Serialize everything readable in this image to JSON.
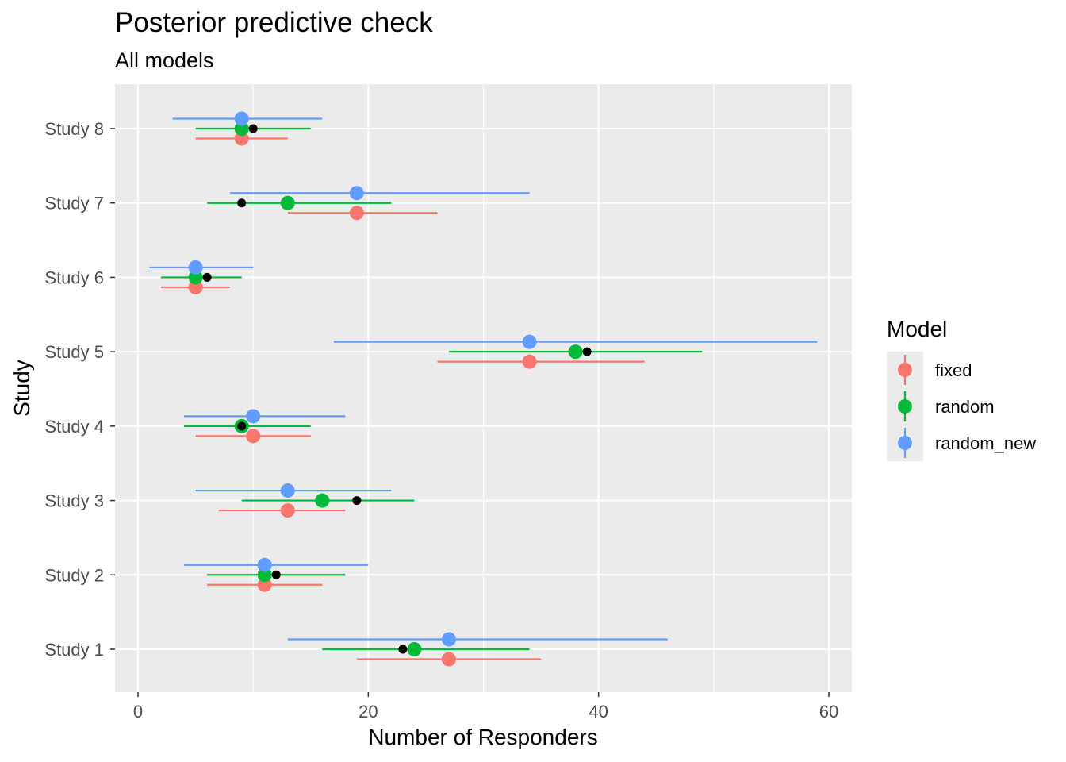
{
  "chart_data": {
    "type": "scatter",
    "title": "Posterior predictive check",
    "subtitle": "All models",
    "xlabel": "Number of Responders",
    "ylabel": "Study",
    "xlim": [
      -2,
      62
    ],
    "x_ticks": [
      0,
      20,
      40,
      60
    ],
    "categories": [
      "Study 1",
      "Study 2",
      "Study 3",
      "Study 4",
      "Study 5",
      "Study 6",
      "Study 7",
      "Study 8"
    ],
    "grid": true,
    "legend": {
      "title": "Model",
      "position": "right",
      "entries": [
        "fixed",
        "random",
        "random_new"
      ]
    },
    "series": [
      {
        "name": "fixed",
        "color": "#F8766D",
        "estimates": [
          27,
          11,
          13,
          10,
          34,
          5,
          19,
          9
        ],
        "lower": [
          19,
          6,
          7,
          5,
          26,
          2,
          13,
          5
        ],
        "upper": [
          35,
          16,
          18,
          15,
          44,
          8,
          26,
          13
        ]
      },
      {
        "name": "random",
        "color": "#00BA38",
        "estimates": [
          24,
          11,
          16,
          9,
          38,
          5,
          13,
          9
        ],
        "lower": [
          16,
          6,
          9,
          4,
          27,
          2,
          6,
          5
        ],
        "upper": [
          34,
          18,
          24,
          15,
          49,
          9,
          22,
          15
        ]
      },
      {
        "name": "random_new",
        "color": "#619CFF",
        "estimates": [
          27,
          11,
          13,
          10,
          34,
          5,
          19,
          9
        ],
        "lower": [
          13,
          4,
          5,
          4,
          17,
          1,
          8,
          3
        ],
        "upper": [
          46,
          20,
          22,
          18,
          59,
          10,
          34,
          16
        ]
      }
    ],
    "observed": {
      "color": "#000000",
      "values": [
        23,
        12,
        19,
        9,
        39,
        6,
        9,
        10
      ]
    }
  }
}
